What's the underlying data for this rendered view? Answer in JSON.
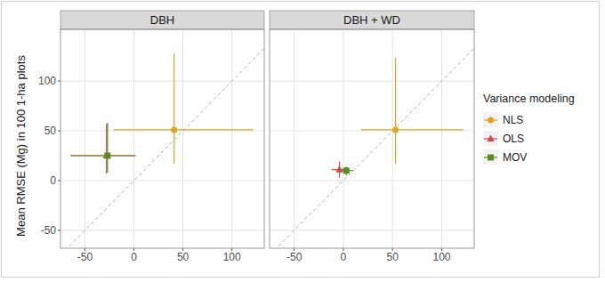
{
  "chart_data": [
    {
      "type": "scatter",
      "title": "DBH",
      "y_label": "Mean RMSE (Mg) in 100 1-ha plots",
      "xlim": [
        -75,
        133
      ],
      "ylim": [
        -68,
        152
      ],
      "xticks": [
        -50,
        0,
        50,
        100
      ],
      "yticks": [
        -50,
        0,
        50,
        100
      ],
      "grid": true,
      "series": [
        {
          "name": "NLS",
          "color": "#E3A31F",
          "marker": "circle",
          "x": [
            41
          ],
          "values": [
            51
          ],
          "xmin": [
            -21
          ],
          "xmax": [
            122
          ],
          "ymin": [
            17
          ],
          "ymax": [
            128
          ]
        },
        {
          "name": "OLS",
          "color": "#D9434F",
          "marker": "triangle",
          "x": [
            -28
          ],
          "values": [
            25
          ],
          "xmin": [
            -65
          ],
          "xmax": [
            2
          ],
          "ymin": [
            7
          ],
          "ymax": [
            57
          ]
        },
        {
          "name": "MOV",
          "color": "#5C8A24",
          "marker": "square",
          "x": [
            -27
          ],
          "values": [
            25
          ],
          "xmin": [
            -64
          ],
          "xmax": [
            1
          ],
          "ymin": [
            8
          ],
          "ymax": [
            58
          ]
        }
      ]
    },
    {
      "type": "scatter",
      "title": "DBH + WD",
      "legend": "right",
      "legend_title": "Variance modeling",
      "xlim": [
        -75,
        133
      ],
      "ylim": [
        -68,
        152
      ],
      "xticks": [
        -50,
        0,
        50,
        100
      ],
      "grid": true,
      "series": [
        {
          "name": "NLS",
          "color": "#E3A31F",
          "marker": "circle",
          "x": [
            53
          ],
          "values": [
            51
          ],
          "xmin": [
            18
          ],
          "xmax": [
            122
          ],
          "ymin": [
            17
          ],
          "ymax": [
            123
          ]
        },
        {
          "name": "OLS",
          "color": "#D9434F",
          "marker": "triangle",
          "x": [
            -4
          ],
          "values": [
            11
          ],
          "xmin": [
            -12
          ],
          "xmax": [
            4
          ],
          "ymin": [
            3
          ],
          "ymax": [
            19
          ]
        },
        {
          "name": "MOV",
          "color": "#5C8A24",
          "marker": "square",
          "x": [
            3
          ],
          "values": [
            10
          ],
          "xmin": [
            -3
          ],
          "xmax": [
            10
          ],
          "ymin": [
            5
          ],
          "ymax": [
            14
          ]
        }
      ]
    }
  ]
}
